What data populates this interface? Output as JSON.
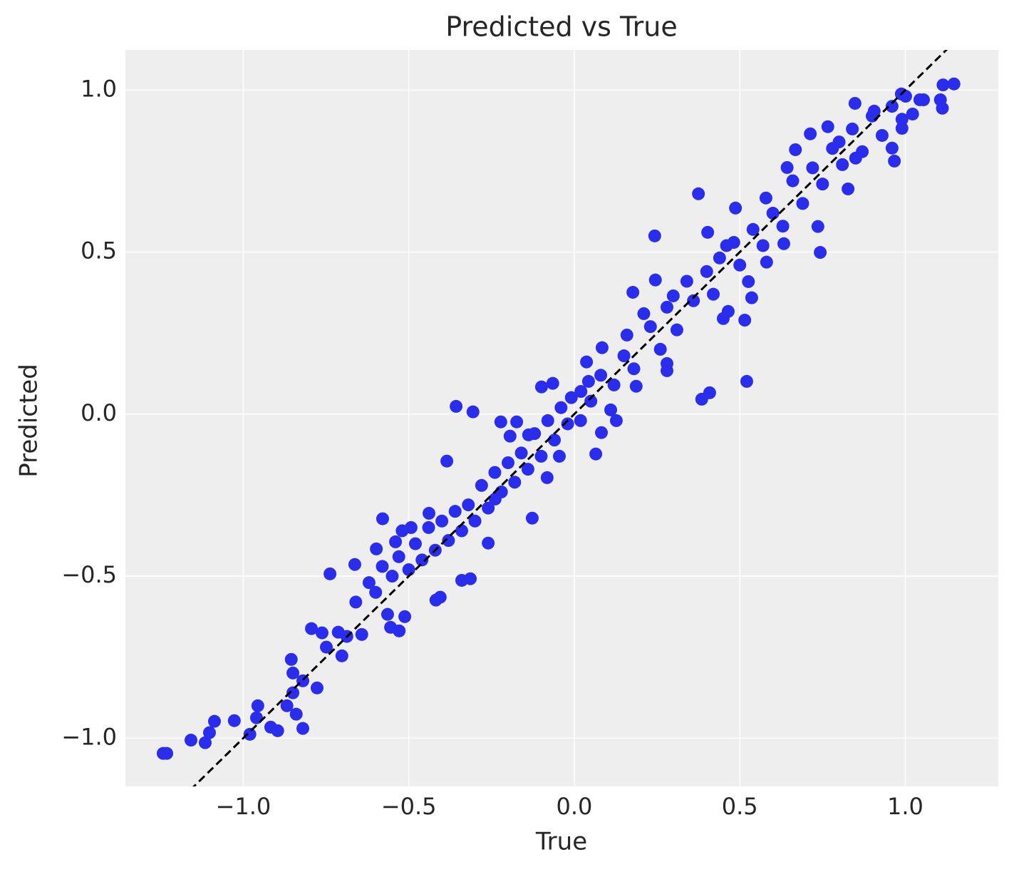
{
  "chart_data": {
    "type": "scatter",
    "title": "Predicted vs True",
    "x_label": "True",
    "y_label": "Predicted",
    "xlim": [
      -1.356,
      1.281
    ],
    "ylim": [
      -1.149,
      1.124
    ],
    "xticks": [
      {
        "value": -1.0,
        "label": "−1.0"
      },
      {
        "value": -0.5,
        "label": "−0.5"
      },
      {
        "value": 0.0,
        "label": "0.0"
      },
      {
        "value": 0.5,
        "label": "0.5"
      },
      {
        "value": 1.0,
        "label": "1.0"
      }
    ],
    "yticks": [
      {
        "value": -1.0,
        "label": "−1.0"
      },
      {
        "value": -0.5,
        "label": "−0.5"
      },
      {
        "value": 0.0,
        "label": "0.0"
      },
      {
        "value": 0.5,
        "label": "0.5"
      },
      {
        "value": 1.0,
        "label": "1.0"
      }
    ],
    "grid": true,
    "background": "#eeeeee",
    "grid_color": "#ffffff",
    "series": [
      {
        "color": "#2a2eec",
        "x": [
          -1.231,
          -1.242,
          -1.158,
          -1.115,
          -1.102,
          -1.087,
          -1.027,
          -0.98,
          -0.96,
          -0.956,
          -0.917,
          -0.896,
          -0.868,
          -0.855,
          -0.85,
          -0.85,
          -0.84,
          -0.82,
          -0.82,
          -0.794,
          -0.777,
          -0.762,
          -0.749,
          -0.738,
          -0.713,
          -0.702,
          -0.687,
          -0.663,
          -0.642,
          -0.579,
          -0.555,
          -0.529,
          -0.512,
          -0.564,
          -0.598,
          -0.54,
          -0.493,
          -0.439,
          -0.357,
          -0.306,
          -0.385,
          -0.418,
          -0.405,
          -0.34,
          -0.314,
          -0.26,
          -0.239,
          -0.222,
          -0.194,
          -0.174,
          -0.138,
          -0.127,
          -0.099,
          -0.065,
          -0.082,
          -0.045,
          -0.009,
          0.019,
          0.043,
          0.065,
          0.082,
          0.11,
          0.127,
          0.084,
          0.037,
          0.177,
          0.187,
          0.159,
          0.243,
          0.245,
          0.28,
          0.28,
          0.299,
          0.375,
          0.385,
          0.409,
          0.403,
          0.439,
          0.45,
          0.465,
          0.515,
          0.521,
          0.536,
          0.526,
          0.487,
          0.482,
          0.581,
          0.633,
          0.579,
          0.643,
          0.736,
          0.743,
          0.713,
          0.766,
          0.668,
          0.827,
          0.848,
          0.906,
          0.967,
          0.96,
          0.99,
          1.022,
          1.044,
          1.055,
          1.106,
          1.112,
          1.114,
          1.147,
          1.001,
          0.988,
          -0.66,
          -0.62,
          -0.6,
          -0.58,
          -0.55,
          -0.53,
          -0.52,
          -0.5,
          -0.48,
          -0.46,
          -0.44,
          -0.42,
          -0.4,
          -0.38,
          -0.36,
          -0.34,
          -0.32,
          -0.3,
          -0.28,
          -0.26,
          -0.24,
          -0.22,
          -0.2,
          -0.18,
          -0.16,
          -0.14,
          -0.12,
          -0.1,
          -0.08,
          -0.06,
          -0.04,
          -0.02,
          0.02,
          0.05,
          0.08,
          0.12,
          0.15,
          0.18,
          0.21,
          0.23,
          0.26,
          0.28,
          0.31,
          0.34,
          0.36,
          0.4,
          0.42,
          0.46,
          0.5,
          0.54,
          0.57,
          0.6,
          0.63,
          0.66,
          0.69,
          0.72,
          0.75,
          0.78,
          0.81,
          0.84,
          0.87,
          0.9,
          0.93,
          0.96,
          0.99,
          0.85,
          0.8
        ],
        "values": [
          -1.047,
          -1.047,
          -1.006,
          -1.014,
          -0.983,
          -0.948,
          -0.946,
          -0.988,
          -0.937,
          -0.9,
          -0.966,
          -0.977,
          -0.9,
          -0.757,
          -0.799,
          -0.86,
          -0.926,
          -0.823,
          -0.97,
          -0.662,
          -0.845,
          -0.675,
          -0.719,
          -0.493,
          -0.673,
          -0.746,
          -0.686,
          -0.464,
          -0.68,
          -0.323,
          -0.658,
          -0.669,
          -0.625,
          -0.618,
          -0.416,
          -0.394,
          -0.35,
          -0.306,
          0.024,
          0.007,
          -0.145,
          -0.574,
          -0.565,
          -0.513,
          -0.508,
          -0.398,
          -0.262,
          -0.024,
          -0.068,
          -0.024,
          -0.064,
          -0.321,
          0.084,
          0.095,
          -0.196,
          -0.13,
          0.051,
          -0.02,
          0.101,
          -0.123,
          -0.057,
          0.013,
          -0.02,
          0.205,
          0.161,
          0.376,
          0.086,
          0.244,
          0.55,
          0.414,
          0.134,
          0.156,
          0.365,
          0.68,
          0.046,
          0.066,
          0.561,
          0.482,
          0.295,
          0.317,
          0.29,
          0.101,
          0.359,
          0.409,
          0.636,
          0.53,
          0.469,
          0.526,
          0.667,
          0.761,
          0.579,
          0.499,
          0.865,
          0.887,
          0.816,
          0.695,
          0.959,
          0.935,
          0.781,
          0.821,
          0.882,
          0.926,
          0.97,
          0.97,
          0.97,
          0.944,
          1.016,
          1.019,
          0.981,
          0.988,
          -0.58,
          -0.52,
          -0.55,
          -0.47,
          -0.5,
          -0.44,
          -0.36,
          -0.48,
          -0.4,
          -0.45,
          -0.35,
          -0.42,
          -0.33,
          -0.39,
          -0.3,
          -0.36,
          -0.28,
          -0.33,
          -0.22,
          -0.29,
          -0.18,
          -0.24,
          -0.15,
          -0.21,
          -0.12,
          -0.17,
          -0.06,
          -0.13,
          -0.02,
          -0.08,
          0.02,
          -0.03,
          0.07,
          0.04,
          0.12,
          0.09,
          0.18,
          0.14,
          0.31,
          0.27,
          0.2,
          0.33,
          0.26,
          0.41,
          0.35,
          0.44,
          0.37,
          0.52,
          0.46,
          0.57,
          0.52,
          0.62,
          0.58,
          0.72,
          0.65,
          0.76,
          0.71,
          0.82,
          0.77,
          0.88,
          0.81,
          0.92,
          0.86,
          0.95,
          0.91,
          0.79,
          0.84
        ]
      }
    ],
    "reference_line": {
      "x": [
        -1.16,
        1.13
      ],
      "y": [
        -1.16,
        1.13
      ],
      "color": "#000000",
      "dashed": true
    }
  }
}
